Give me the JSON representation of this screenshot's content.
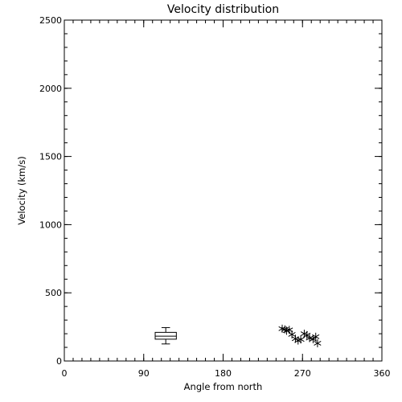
{
  "chart_data": {
    "type": "scatter",
    "title": "Velocity distribution",
    "xlabel": "Angle from north",
    "ylabel": "Velocity (km/s)",
    "xlim": [
      0,
      360
    ],
    "ylim": [
      0,
      2500
    ],
    "xticks": [
      {
        "value": 0,
        "label": "0"
      },
      {
        "value": 90,
        "label": "90"
      },
      {
        "value": 180,
        "label": "180"
      },
      {
        "value": 270,
        "label": "270"
      },
      {
        "value": 360,
        "label": "360"
      }
    ],
    "yticks": [
      {
        "value": 0,
        "label": "0"
      },
      {
        "value": 500,
        "label": "500"
      },
      {
        "value": 1000,
        "label": "1000"
      },
      {
        "value": 1500,
        "label": "1500"
      },
      {
        "value": 2000,
        "label": "2000"
      },
      {
        "value": 2500,
        "label": "2500"
      }
    ],
    "x_minor_step": 10,
    "y_minor_step": 100,
    "grid": false,
    "boxplot": {
      "x_center": 115,
      "box_x_range": [
        103,
        127
      ],
      "min": 125,
      "q1": 160,
      "median": 182,
      "q3": 210,
      "max": 245
    },
    "points": [
      {
        "x": 247,
        "y": 237
      },
      {
        "x": 250,
        "y": 232
      },
      {
        "x": 252,
        "y": 222
      },
      {
        "x": 255,
        "y": 228
      },
      {
        "x": 258,
        "y": 195
      },
      {
        "x": 262,
        "y": 163
      },
      {
        "x": 265,
        "y": 150
      },
      {
        "x": 268,
        "y": 158
      },
      {
        "x": 272,
        "y": 200
      },
      {
        "x": 275,
        "y": 190
      },
      {
        "x": 278,
        "y": 168
      },
      {
        "x": 282,
        "y": 160
      },
      {
        "x": 285,
        "y": 178
      },
      {
        "x": 287,
        "y": 130
      }
    ],
    "colors": {
      "foreground": "#000000",
      "background": "#ffffff"
    }
  }
}
